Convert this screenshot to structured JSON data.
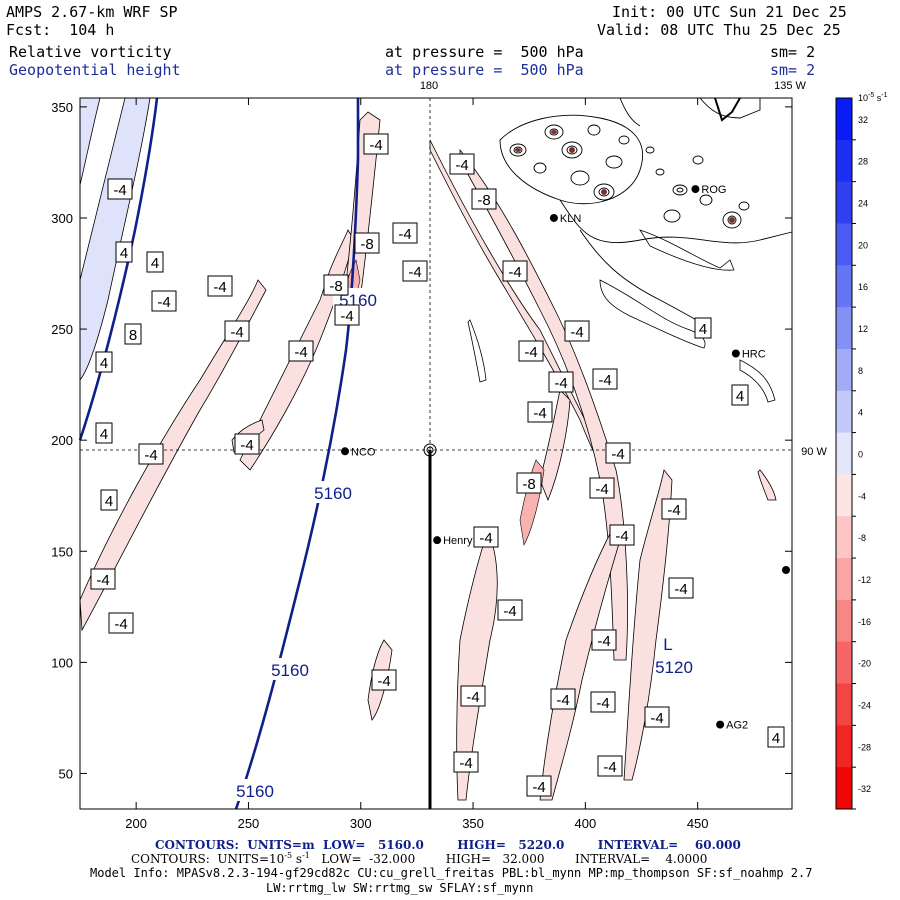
{
  "header": {
    "model": "AMPS 2.67-km WRF SP",
    "fcst": "Fcst:  104 h",
    "init": "Init: 00 UTC Sun 21 Dec 25",
    "valid": "Valid: 08 UTC Thu 25 Dec 25",
    "field1_name": "Relative vorticity",
    "field1_level": "at pressure =  500 hPa",
    "field1_sm": "sm= 2",
    "field2_name": "Geopotential height",
    "field2_level": "at pressure =  500 hPa",
    "field2_sm": "sm= 2"
  },
  "map_labels": {
    "lon180": "180",
    "lon135w": "135 W",
    "lon90w": "90 W"
  },
  "colors": {
    "height_contour": "#10208a",
    "pos_fill": "#dfe2fb",
    "neg_fill": "#fbe0e0"
  },
  "chart_data": {
    "type": "heatmap",
    "x_ticks": [
      "200",
      "250",
      "300",
      "350",
      "400",
      "450"
    ],
    "y_ticks": [
      "350",
      "300",
      "250",
      "200",
      "150",
      "100",
      "50"
    ],
    "xlim": [
      175,
      492
    ],
    "ylim": [
      34,
      354
    ],
    "height_contour_labels": [
      "5160",
      "5160",
      "5160",
      "5160"
    ],
    "height_low": {
      "symbol": "L",
      "value": "5120"
    },
    "vorticity_labels": [
      "-4",
      "-4",
      "-4",
      "-4",
      "-4",
      "-4",
      "-4",
      "-4",
      "-4",
      "-4",
      "-4",
      "-4",
      "-4",
      "-4",
      "-4",
      "-4",
      "-4",
      "-4",
      "-4",
      "-4",
      "-4",
      "-4",
      "-4",
      "-4",
      "-4",
      "-4",
      "-4",
      "-4",
      "-8",
      "-8",
      "-8",
      "-8",
      "4",
      "4",
      "4",
      "4",
      "4",
      "4",
      "4",
      "4",
      "8"
    ],
    "stations": [
      {
        "name": "NCO",
        "x": 293,
        "y": 195
      },
      {
        "name": "Henry",
        "x": 334,
        "y": 155
      },
      {
        "name": "KLN",
        "x": 386,
        "y": 300
      },
      {
        "name": "ROG",
        "x": 449,
        "y": 313
      },
      {
        "name": "HRC",
        "x": 467,
        "y": 239
      },
      {
        "name": "AG2",
        "x": 460,
        "y": 72
      }
    ],
    "colorbar": {
      "unit": "10",
      "unit_exp": "-5",
      "unit_suffix": " s",
      "unit_suffix_exp": "-1",
      "ticks": [
        "32",
        "28",
        "24",
        "20",
        "16",
        "12",
        "8",
        "4",
        "0",
        "-4",
        "-8",
        "-12",
        "-16",
        "-20",
        "-24",
        "-28",
        "-32"
      ],
      "colors": [
        "#0a1cf5",
        "#1b2ef3",
        "#3140f1",
        "#4a5af2",
        "#6676f3",
        "#8390f4",
        "#a2acf6",
        "#c3c9f8",
        "#e4e7fb",
        "#fde5e5",
        "#fcc6c6",
        "#faa6a6",
        "#f88686",
        "#f66666",
        "#f44545",
        "#f22424",
        "#f00606"
      ]
    }
  },
  "footer": {
    "line1_a": "CONTOURS:  UNITS=m  LOW=   5160.0        HIGH=   5220.0        INTERVAL=    60.000",
    "line2_a": "CONTOURS:  UNITS=10",
    "line2_exp1": "-5",
    "line2_b": " s",
    "line2_exp2": "-1",
    "line2_c": "   LOW=  -32.000        HIGH=   32.000        INTERVAL=    4.0000",
    "line3": "Model Info: MPASv8.2.3-194-gf29cd82c CU:cu_grell_freitas PBL:bl_mynn MP:mp_thompson SF:sf_noahmp 2.7",
    "line4": "LW:rrtmg_lw SW:rrtmg_sw SFLAY:sf_mynn"
  }
}
